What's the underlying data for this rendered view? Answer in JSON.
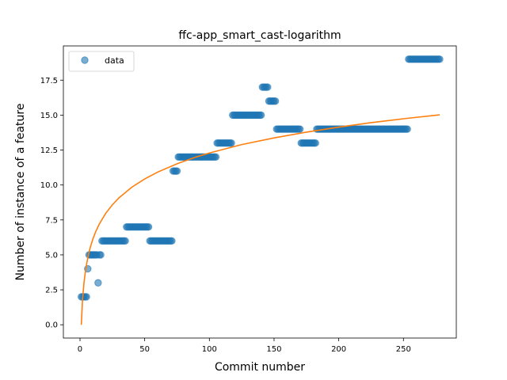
{
  "chart_data": {
    "type": "scatter",
    "title": "ffc-app_smart_cast-logarithm",
    "xlabel": "Commit number",
    "ylabel": "Number of instance of a feature",
    "xlim": [
      -12.85,
      290.85
    ],
    "ylim": [
      -0.95,
      19.95
    ],
    "xticks": [
      0,
      50,
      100,
      150,
      200,
      250
    ],
    "yticks": [
      0.0,
      2.5,
      5.0,
      7.5,
      10.0,
      12.5,
      15.0,
      17.5
    ],
    "ytick_labels": [
      "0.0",
      "2.5",
      "5.0",
      "7.5",
      "10.0",
      "12.5",
      "15.0",
      "17.5"
    ],
    "grid": false,
    "legend": {
      "position": "upper-left",
      "entries": [
        "data"
      ]
    },
    "colors": {
      "data": "#1f77b4",
      "fit": "#ff7f0e"
    },
    "series": [
      {
        "name": "data",
        "kind": "scatter",
        "segments": [
          {
            "x_start": 1,
            "x_end": 5,
            "y": 2
          },
          {
            "x_start": 6,
            "x_end": 6,
            "y": 4
          },
          {
            "x_start": 7,
            "x_end": 13,
            "y": 5
          },
          {
            "x_start": 14,
            "x_end": 14,
            "y": 3
          },
          {
            "x_start": 15,
            "x_end": 16,
            "y": 5
          },
          {
            "x_start": 17,
            "x_end": 35,
            "y": 6
          },
          {
            "x_start": 36,
            "x_end": 53,
            "y": 7
          },
          {
            "x_start": 54,
            "x_end": 71,
            "y": 6
          },
          {
            "x_start": 72,
            "x_end": 75,
            "y": 11
          },
          {
            "x_start": 76,
            "x_end": 105,
            "y": 12
          },
          {
            "x_start": 106,
            "x_end": 117,
            "y": 13
          },
          {
            "x_start": 118,
            "x_end": 140,
            "y": 15
          },
          {
            "x_start": 141,
            "x_end": 145,
            "y": 17
          },
          {
            "x_start": 146,
            "x_end": 151,
            "y": 16
          },
          {
            "x_start": 152,
            "x_end": 170,
            "y": 14
          },
          {
            "x_start": 171,
            "x_end": 182,
            "y": 13
          },
          {
            "x_start": 183,
            "x_end": 253,
            "y": 14
          },
          {
            "x_start": 254,
            "x_end": 278,
            "y": 19
          }
        ]
      },
      {
        "kind": "line",
        "model": "logarithmic",
        "x_range": [
          1,
          278
        ],
        "points": [
          [
            1,
            0.0
          ],
          [
            2,
            1.85
          ],
          [
            3,
            2.93
          ],
          [
            4,
            3.69
          ],
          [
            5,
            4.29
          ],
          [
            6,
            4.78
          ],
          [
            7,
            5.19
          ],
          [
            8,
            5.55
          ],
          [
            10,
            6.14
          ],
          [
            12,
            6.63
          ],
          [
            15,
            7.22
          ],
          [
            20,
            7.99
          ],
          [
            25,
            8.58
          ],
          [
            30,
            9.07
          ],
          [
            40,
            9.84
          ],
          [
            50,
            10.43
          ],
          [
            60,
            10.92
          ],
          [
            75,
            11.52
          ],
          [
            90,
            12.01
          ],
          [
            100,
            12.29
          ],
          [
            125,
            12.89
          ],
          [
            150,
            13.37
          ],
          [
            175,
            13.78
          ],
          [
            200,
            14.14
          ],
          [
            225,
            14.46
          ],
          [
            250,
            14.74
          ],
          [
            278,
            15.02
          ]
        ]
      }
    ]
  }
}
